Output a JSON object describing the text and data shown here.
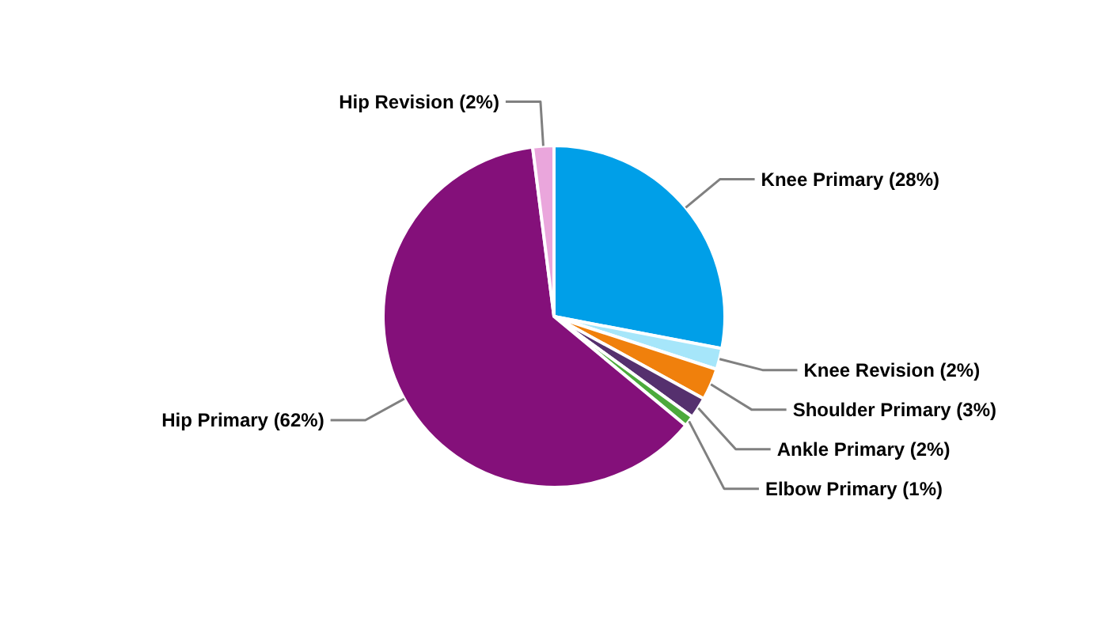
{
  "chart_data": {
    "type": "pie",
    "categories": [
      "Knee Primary (28%)",
      "Knee Revision (2%)",
      "Shoulder Primary (3%)",
      "Ankle Primary (2%)",
      "Elbow Primary (1%)",
      "Hip Primary (62%)",
      "Hip Revision (2%)"
    ],
    "values": [
      28,
      2,
      3,
      2,
      1,
      62,
      2
    ],
    "colors": [
      "#009fe8",
      "#a6e6fa",
      "#f0800c",
      "#55306e",
      "#4caa3c",
      "#84107a",
      "#eaa6dc"
    ]
  }
}
